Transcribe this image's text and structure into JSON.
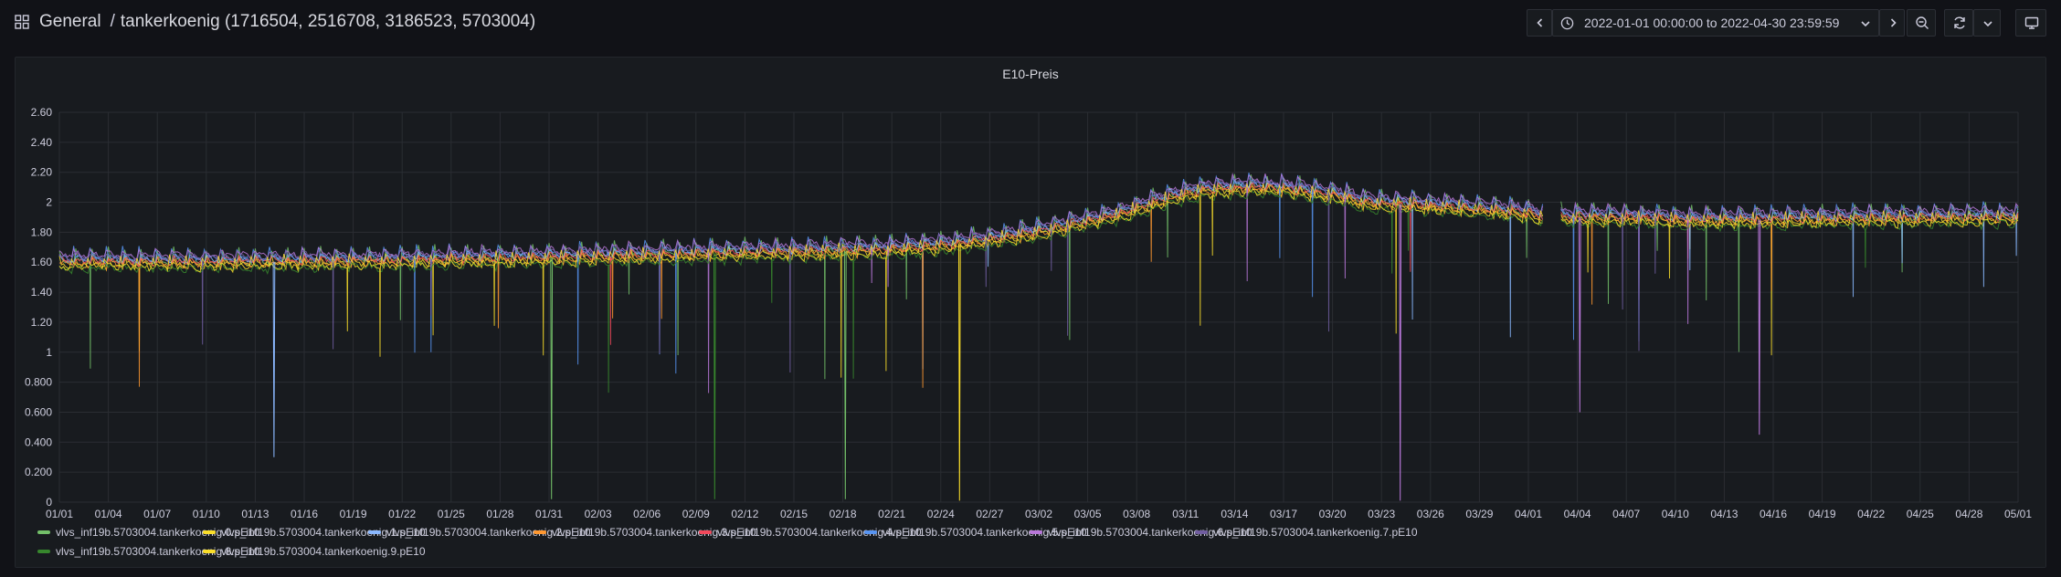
{
  "header": {
    "folder": "General",
    "separator": "/",
    "dashboard_title": "tankerkoenig (1716504, 2516708, 3186523, 5703004)",
    "time_range": "2022-01-01 00:00:00 to 2022-04-30 23:59:59"
  },
  "toolbar": {
    "icons": [
      "chevron-left-icon",
      "clock-icon",
      "chevron-down-icon",
      "chevron-right-icon",
      "zoom-out-icon",
      "refresh-icon",
      "chevron-down-icon",
      "tv-icon"
    ]
  },
  "panel": {
    "title": "E10-Preis"
  },
  "chart_data": {
    "type": "line",
    "title": "E10-Preis",
    "xlabel": "",
    "ylabel": "",
    "ylim": [
      0,
      2.6
    ],
    "yticks": [
      "0",
      "0.200",
      "0.400",
      "0.600",
      "0.800",
      "1",
      "1.20",
      "1.40",
      "1.60",
      "1.80",
      "2",
      "2.20",
      "2.40",
      "2.60"
    ],
    "x_range": [
      "2022-01-01",
      "2022-05-01"
    ],
    "xticks": [
      "01/01",
      "01/04",
      "01/07",
      "01/10",
      "01/13",
      "01/16",
      "01/19",
      "01/22",
      "01/25",
      "01/28",
      "01/31",
      "02/03",
      "02/06",
      "02/09",
      "02/12",
      "02/15",
      "02/18",
      "02/21",
      "02/24",
      "02/27",
      "03/02",
      "03/05",
      "03/08",
      "03/11",
      "03/14",
      "03/17",
      "03/20",
      "03/23",
      "03/26",
      "03/29",
      "04/01",
      "04/04",
      "04/07",
      "04/10",
      "04/13",
      "04/16",
      "04/19",
      "04/22",
      "04/25",
      "04/28",
      "05/01"
    ],
    "trend": {
      "description": "approximate daily level of the series band (in EUR)",
      "day": [
        0,
        10,
        20,
        30,
        40,
        50,
        55,
        60,
        65,
        68,
        70,
        73,
        75,
        78,
        80,
        85,
        90,
        91,
        95,
        100,
        110,
        119
      ],
      "value": [
        1.6,
        1.6,
        1.61,
        1.63,
        1.66,
        1.68,
        1.72,
        1.8,
        1.92,
        2.03,
        2.08,
        2.1,
        2.09,
        2.05,
        2.0,
        1.97,
        1.93,
        1.9,
        1.9,
        1.88,
        1.89,
        1.9
      ]
    },
    "data_gap": [
      "2022-04-01",
      "2022-04-02"
    ],
    "series": [
      {
        "name": "vlvs_inf19b.5703004.tankerkoenig.0.pE10",
        "color": "#73bf69",
        "offset": 0.0
      },
      {
        "name": "vlvs_inf19b.5703004.tankerkoenig.1.pE10",
        "color": "#fade2a",
        "offset": -0.02
      },
      {
        "name": "vlvs_inf19b.5703004.tankerkoenig.2.pE10",
        "color": "#8ab8ff",
        "offset": 0.02
      },
      {
        "name": "vlvs_inf19b.5703004.tankerkoenig.3.pE10",
        "color": "#ff9830",
        "offset": -0.01
      },
      {
        "name": "vlvs_inf19b.5703004.tankerkoenig.4.pE10",
        "color": "#f2495c",
        "offset": 0.01
      },
      {
        "name": "vlvs_inf19b.5703004.tankerkoenig.5.pE10",
        "color": "#5794f2",
        "offset": 0.03
      },
      {
        "name": "vlvs_inf19b.5703004.tankerkoenig.6.pE10",
        "color": "#b877d9",
        "offset": 0.05
      },
      {
        "name": "vlvs_inf19b.5703004.tankerkoenig.7.pE10",
        "color": "#705da0",
        "offset": 0.04
      },
      {
        "name": "vlvs_inf19b.5703004.tankerkoenig.8.pE10",
        "color": "#37872d",
        "offset": -0.04
      },
      {
        "name": "vlvs_inf19b.5703004.tankerkoenig.9.pE10",
        "color": "#fade2a",
        "offset": -0.03
      }
    ]
  }
}
